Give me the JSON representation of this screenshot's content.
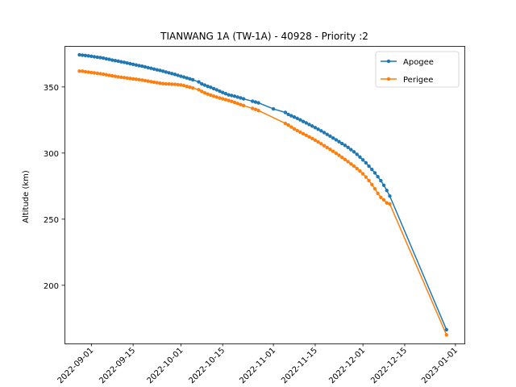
{
  "chart_data": {
    "type": "line",
    "title": "TIANWANG 1A (TW-1A) - 40928 - Priority :2",
    "xlabel": "",
    "ylabel": "Altitude (km)",
    "x_is_date": true,
    "xlim": [
      "2022-08-23",
      "2023-01-04"
    ],
    "ylim": [
      156,
      381
    ],
    "x_ticks": [
      "2022-09-01",
      "2022-09-15",
      "2022-10-01",
      "2022-10-15",
      "2022-11-01",
      "2022-11-15",
      "2022-12-01",
      "2022-12-15",
      "2023-01-01"
    ],
    "y_ticks": [
      200,
      250,
      300,
      350
    ],
    "legend": {
      "position": "upper-right"
    },
    "series": [
      {
        "name": "Apogee",
        "color": "#1f77b4",
        "points": [
          [
            "2022-08-28",
            374.3
          ],
          [
            "2022-08-29",
            374.0
          ],
          [
            "2022-08-30",
            373.8
          ],
          [
            "2022-08-31",
            373.5
          ],
          [
            "2022-09-01",
            373.2
          ],
          [
            "2022-09-02",
            372.8
          ],
          [
            "2022-09-03",
            372.5
          ],
          [
            "2022-09-04",
            372.2
          ],
          [
            "2022-09-05",
            371.8
          ],
          [
            "2022-09-06",
            371.3
          ],
          [
            "2022-09-07",
            370.9
          ],
          [
            "2022-09-08",
            370.3
          ],
          [
            "2022-09-09",
            369.9
          ],
          [
            "2022-09-10",
            369.5
          ],
          [
            "2022-09-11",
            369.0
          ],
          [
            "2022-09-12",
            368.6
          ],
          [
            "2022-09-13",
            368.1
          ],
          [
            "2022-09-14",
            367.6
          ],
          [
            "2022-09-15",
            367.1
          ],
          [
            "2022-09-16",
            366.6
          ],
          [
            "2022-09-17",
            366.1
          ],
          [
            "2022-09-18",
            365.7
          ],
          [
            "2022-09-19",
            365.2
          ],
          [
            "2022-09-20",
            364.6
          ],
          [
            "2022-09-21",
            364.1
          ],
          [
            "2022-09-22",
            363.5
          ],
          [
            "2022-09-23",
            363.0
          ],
          [
            "2022-09-24",
            362.5
          ],
          [
            "2022-09-25",
            361.9
          ],
          [
            "2022-09-26",
            361.3
          ],
          [
            "2022-09-27",
            360.7
          ],
          [
            "2022-09-28",
            360.1
          ],
          [
            "2022-09-29",
            359.5
          ],
          [
            "2022-09-30",
            358.8
          ],
          [
            "2022-10-01",
            358.1
          ],
          [
            "2022-10-02",
            357.5
          ],
          [
            "2022-10-03",
            356.8
          ],
          [
            "2022-10-04",
            356.1
          ],
          [
            "2022-10-05",
            355.4
          ],
          [
            "2022-10-07",
            353.8
          ],
          [
            "2022-10-08",
            352.3
          ],
          [
            "2022-10-09",
            351.4
          ],
          [
            "2022-10-10",
            350.5
          ],
          [
            "2022-10-11",
            349.7
          ],
          [
            "2022-10-12",
            348.7
          ],
          [
            "2022-10-13",
            347.8
          ],
          [
            "2022-10-14",
            346.8
          ],
          [
            "2022-10-15",
            345.8
          ],
          [
            "2022-10-16",
            344.9
          ],
          [
            "2022-10-17",
            344.0
          ],
          [
            "2022-10-18",
            343.5
          ],
          [
            "2022-10-19",
            343.0
          ],
          [
            "2022-10-20",
            342.3
          ],
          [
            "2022-10-21",
            341.7
          ],
          [
            "2022-10-22",
            341.0
          ],
          [
            "2022-10-25",
            339.2
          ],
          [
            "2022-10-26",
            338.6
          ],
          [
            "2022-10-27",
            338.0
          ],
          [
            "2022-11-01",
            333.4
          ],
          [
            "2022-11-05",
            330.7
          ],
          [
            "2022-11-06",
            329.2
          ],
          [
            "2022-11-07",
            328.2
          ],
          [
            "2022-11-08",
            327.2
          ],
          [
            "2022-11-09",
            326.2
          ],
          [
            "2022-11-10",
            325.1
          ],
          [
            "2022-11-11",
            323.9
          ],
          [
            "2022-11-12",
            322.8
          ],
          [
            "2022-11-13",
            321.6
          ],
          [
            "2022-11-14",
            320.4
          ],
          [
            "2022-11-15",
            319.2
          ],
          [
            "2022-11-16",
            318.0
          ],
          [
            "2022-11-17",
            316.8
          ],
          [
            "2022-11-18",
            315.5
          ],
          [
            "2022-11-19",
            314.1
          ],
          [
            "2022-11-20",
            312.8
          ],
          [
            "2022-11-21",
            311.4
          ],
          [
            "2022-11-22",
            310.0
          ],
          [
            "2022-11-23",
            308.6
          ],
          [
            "2022-11-24",
            307.2
          ],
          [
            "2022-11-25",
            305.8
          ],
          [
            "2022-11-26",
            304.3
          ],
          [
            "2022-11-27",
            302.6
          ],
          [
            "2022-11-28",
            300.9
          ],
          [
            "2022-11-29",
            299.0
          ],
          [
            "2022-11-30",
            297.0
          ],
          [
            "2022-12-01",
            294.8
          ],
          [
            "2022-12-02",
            292.6
          ],
          [
            "2022-12-03",
            290.1
          ],
          [
            "2022-12-04",
            287.6
          ],
          [
            "2022-12-05",
            285.0
          ],
          [
            "2022-12-06",
            282.1
          ],
          [
            "2022-12-07",
            279.1
          ],
          [
            "2022-12-08",
            275.6
          ],
          [
            "2022-12-09",
            271.7
          ],
          [
            "2022-12-10",
            267.5
          ],
          [
            "2022-12-29",
            166.4
          ]
        ]
      },
      {
        "name": "Perigee",
        "color": "#ff7f0e",
        "points": [
          [
            "2022-08-28",
            362.0
          ],
          [
            "2022-08-29",
            361.9
          ],
          [
            "2022-08-30",
            361.5
          ],
          [
            "2022-08-31",
            361.2
          ],
          [
            "2022-09-01",
            360.9
          ],
          [
            "2022-09-02",
            360.6
          ],
          [
            "2022-09-03",
            360.3
          ],
          [
            "2022-09-04",
            360.0
          ],
          [
            "2022-09-05",
            359.6
          ],
          [
            "2022-09-06",
            359.2
          ],
          [
            "2022-09-07",
            358.8
          ],
          [
            "2022-09-08",
            358.4
          ],
          [
            "2022-09-09",
            358.0
          ],
          [
            "2022-09-10",
            357.6
          ],
          [
            "2022-09-11",
            357.3
          ],
          [
            "2022-09-12",
            357.0
          ],
          [
            "2022-09-13",
            356.7
          ],
          [
            "2022-09-14",
            356.4
          ],
          [
            "2022-09-15",
            356.1
          ],
          [
            "2022-09-16",
            355.8
          ],
          [
            "2022-09-17",
            355.5
          ],
          [
            "2022-09-18",
            355.2
          ],
          [
            "2022-09-19",
            354.8
          ],
          [
            "2022-09-20",
            354.4
          ],
          [
            "2022-09-21",
            354.0
          ],
          [
            "2022-09-22",
            353.6
          ],
          [
            "2022-09-23",
            353.2
          ],
          [
            "2022-09-24",
            352.8
          ],
          [
            "2022-09-25",
            352.5
          ],
          [
            "2022-09-26",
            352.3
          ],
          [
            "2022-09-27",
            352.2
          ],
          [
            "2022-09-28",
            352.1
          ],
          [
            "2022-09-29",
            352.0
          ],
          [
            "2022-09-30",
            351.8
          ],
          [
            "2022-10-01",
            351.5
          ],
          [
            "2022-10-02",
            351.0
          ],
          [
            "2022-10-03",
            350.4
          ],
          [
            "2022-10-04",
            349.8
          ],
          [
            "2022-10-05",
            349.2
          ],
          [
            "2022-10-07",
            347.9
          ],
          [
            "2022-10-08",
            346.6
          ],
          [
            "2022-10-09",
            345.5
          ],
          [
            "2022-10-10",
            344.6
          ],
          [
            "2022-10-11",
            343.8
          ],
          [
            "2022-10-12",
            343.0
          ],
          [
            "2022-10-13",
            342.3
          ],
          [
            "2022-10-14",
            341.6
          ],
          [
            "2022-10-15",
            341.0
          ],
          [
            "2022-10-16",
            340.4
          ],
          [
            "2022-10-17",
            339.8
          ],
          [
            "2022-10-18",
            339.1
          ],
          [
            "2022-10-19",
            338.3
          ],
          [
            "2022-10-20",
            337.5
          ],
          [
            "2022-10-21",
            336.7
          ],
          [
            "2022-10-22",
            335.9
          ],
          [
            "2022-10-25",
            333.8
          ],
          [
            "2022-10-26",
            333.0
          ],
          [
            "2022-10-27",
            332.2
          ],
          [
            "2022-11-05",
            322.4
          ],
          [
            "2022-11-06",
            321.2
          ],
          [
            "2022-11-07",
            319.7
          ],
          [
            "2022-11-08",
            318.2
          ],
          [
            "2022-11-09",
            317.0
          ],
          [
            "2022-11-10",
            315.8
          ],
          [
            "2022-11-11",
            314.6
          ],
          [
            "2022-11-12",
            313.4
          ],
          [
            "2022-11-13",
            312.2
          ],
          [
            "2022-11-14",
            311.0
          ],
          [
            "2022-11-15",
            309.7
          ],
          [
            "2022-11-16",
            308.4
          ],
          [
            "2022-11-17",
            307.0
          ],
          [
            "2022-11-18",
            305.6
          ],
          [
            "2022-11-19",
            304.2
          ],
          [
            "2022-11-20",
            302.8
          ],
          [
            "2022-11-21",
            301.3
          ],
          [
            "2022-11-22",
            299.8
          ],
          [
            "2022-11-23",
            298.3
          ],
          [
            "2022-11-24",
            296.7
          ],
          [
            "2022-11-25",
            295.1
          ],
          [
            "2022-11-26",
            293.5
          ],
          [
            "2022-11-27",
            291.8
          ],
          [
            "2022-11-28",
            290.1
          ],
          [
            "2022-11-29",
            288.3
          ],
          [
            "2022-11-30",
            286.4
          ],
          [
            "2022-12-01",
            284.3
          ],
          [
            "2022-12-02",
            281.9
          ],
          [
            "2022-12-03",
            279.2
          ],
          [
            "2022-12-04",
            276.2
          ],
          [
            "2022-12-05",
            273.0
          ],
          [
            "2022-12-06",
            269.5
          ],
          [
            "2022-12-07",
            266.5
          ],
          [
            "2022-12-08",
            264.6
          ],
          [
            "2022-12-09",
            262.3
          ],
          [
            "2022-12-10",
            261.5
          ],
          [
            "2022-12-29",
            162.5
          ]
        ]
      }
    ]
  }
}
